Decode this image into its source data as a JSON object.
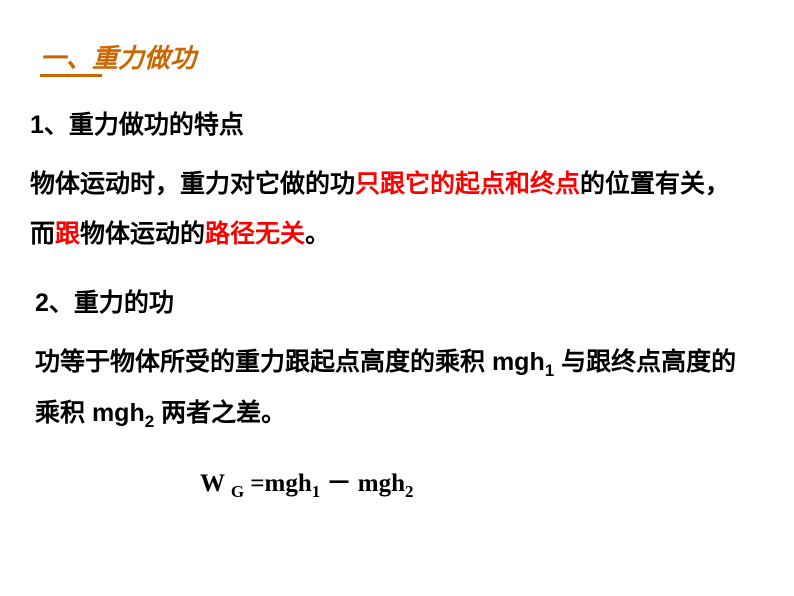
{
  "title": {
    "prefix": "一",
    "colon": "、",
    "text": "重力做功"
  },
  "section1": {
    "heading": "1、重力做功的特点",
    "line1_part1": "物体运动时，重力对它做的功",
    "line1_red1": "只跟它的起点和终点",
    "line1_part2": "的位置有关，而",
    "line1_red2": "跟",
    "line1_part3": "物体运动的",
    "line1_red3": "路径无关",
    "line1_part4": "。"
  },
  "section2": {
    "heading": "2、重力的功",
    "line1_part1": "功等于物体所受的重力跟起点高度的乘积 mgh",
    "line1_sub1": "1",
    "line1_part2": " 与跟终点高度的乘积 mgh",
    "line1_sub2": "2",
    "line1_part3": " 两者之差。"
  },
  "formula": {
    "w": "W ",
    "g_sub": "G",
    "equals": " =mgh",
    "sub1": "1",
    "minus": " － mgh",
    "sub2": "2"
  },
  "colors": {
    "title_color": "#CC6600",
    "red_color": "#FF0000",
    "black_color": "#000000",
    "background": "#ffffff"
  }
}
